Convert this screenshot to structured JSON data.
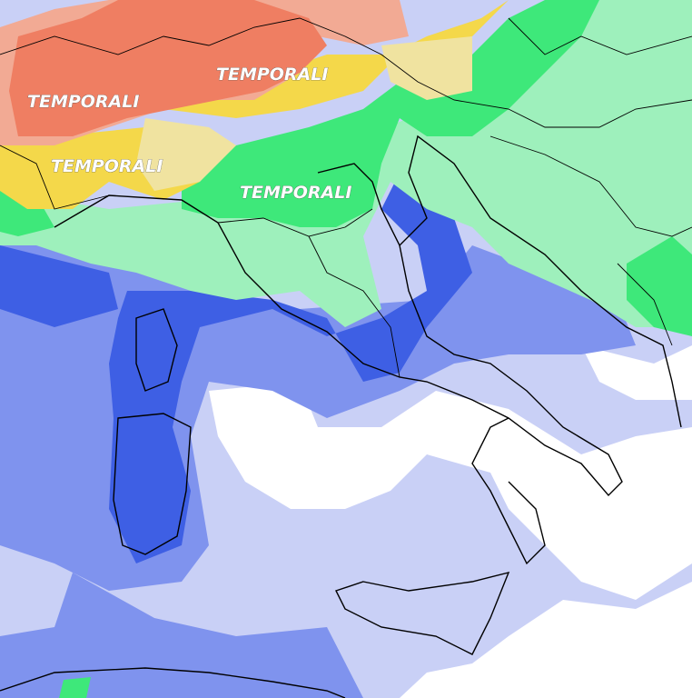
{
  "map": {
    "labels": [
      "TEMPORALI",
      "TEMPORALI",
      "TEMPORALI",
      "TEMPORALI"
    ]
  }
}
